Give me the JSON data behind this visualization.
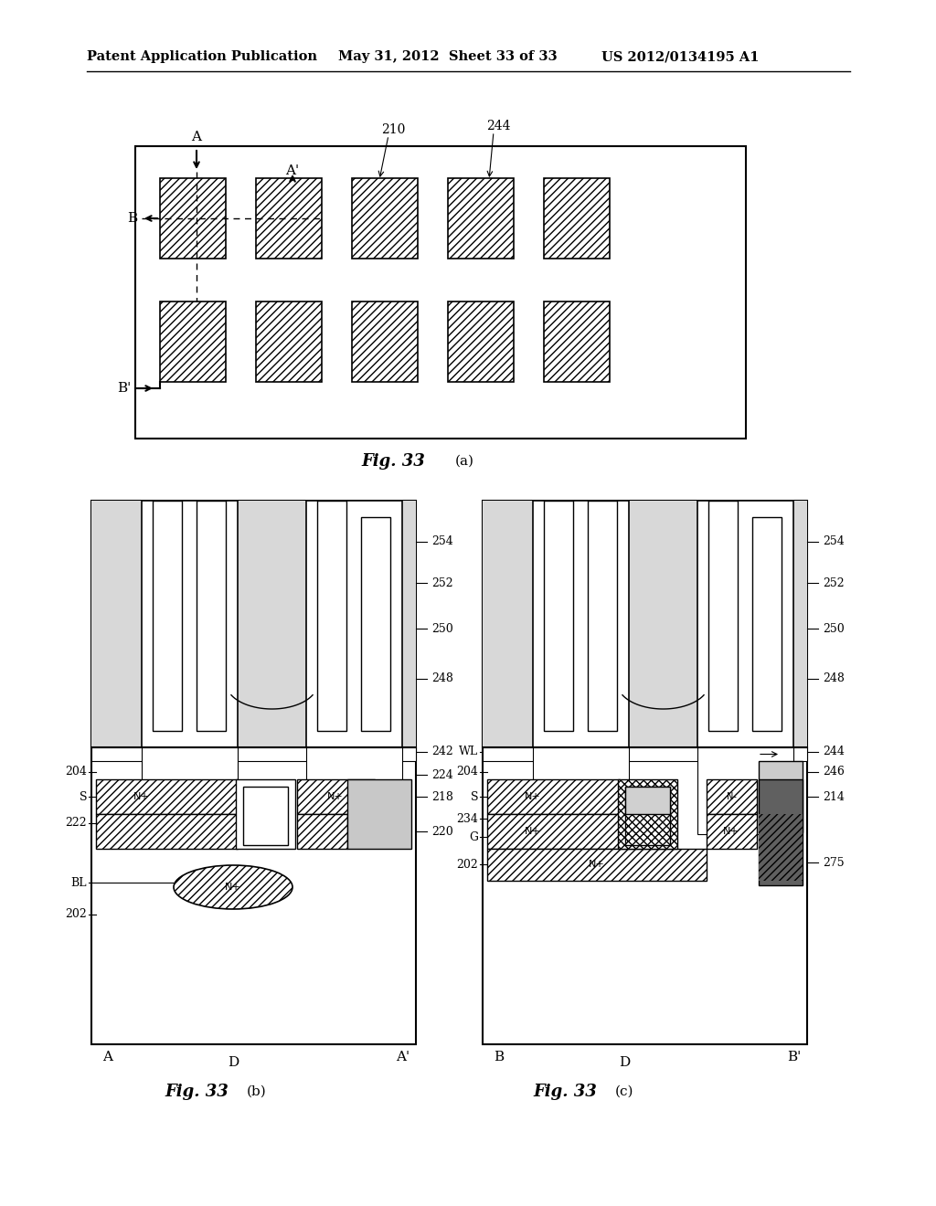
{
  "header_left": "Patent Application Publication",
  "header_mid": "May 31, 2012  Sheet 33 of 33",
  "header_right": "US 2012/0134195 A1",
  "background": "#ffffff",
  "line_color": "#000000"
}
